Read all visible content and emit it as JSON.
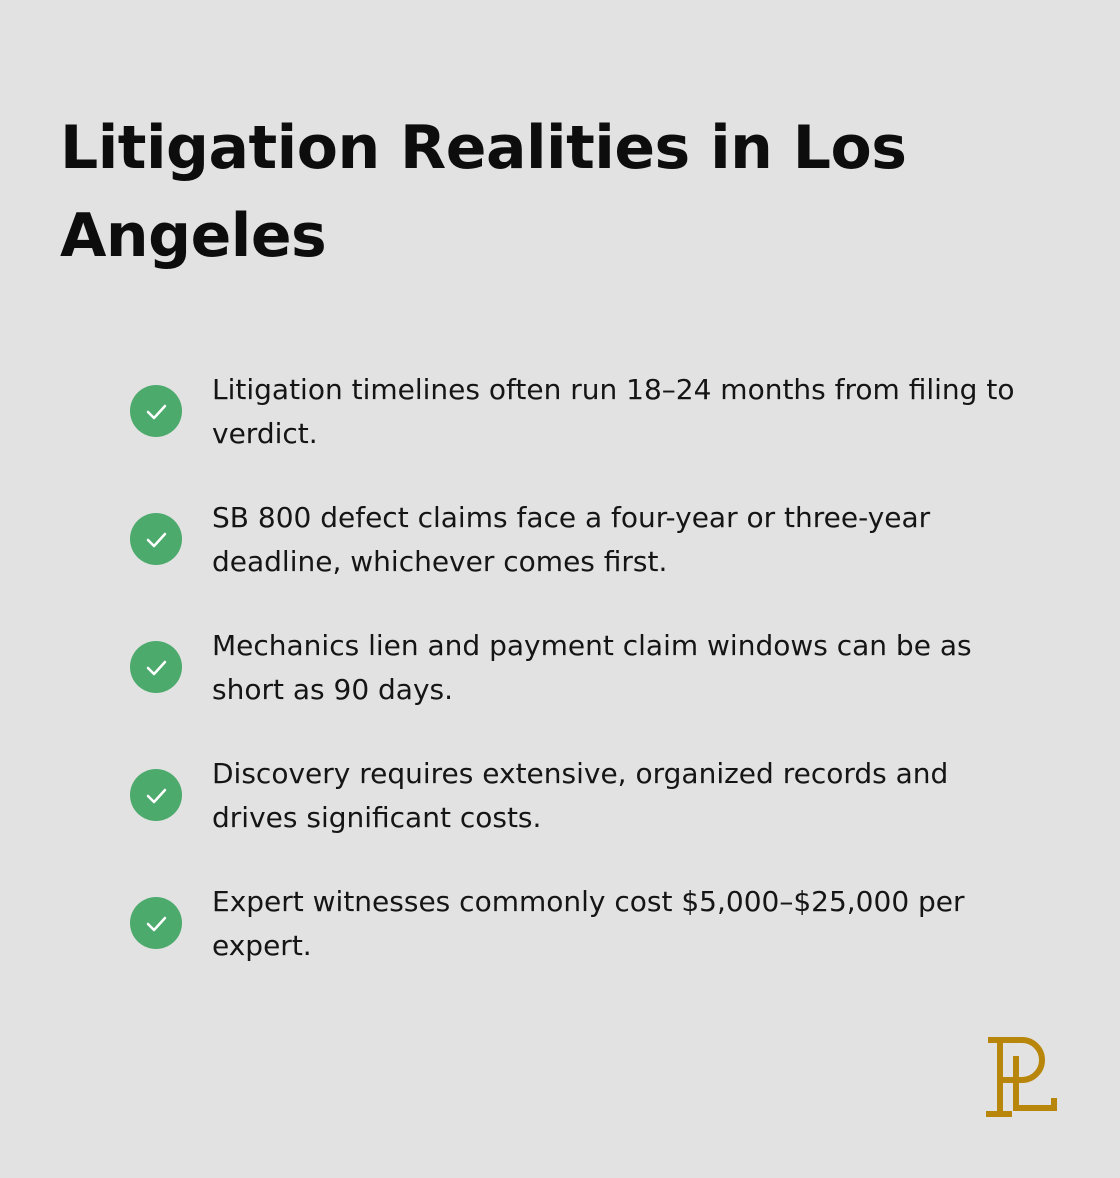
{
  "header": {
    "title": "Litigation Realities in Los Angeles"
  },
  "items": [
    "Litigation timelines often run 18–24 months from filing to verdict.",
    "SB 800 defect claims face a four-year or three-year deadline, whichever comes first.",
    "Mechanics lien and payment claim windows can be as short as 90 days.",
    "Discovery requires extensive, organized records and drives significant costs.",
    "Expert witnesses commonly cost $5,000–$25,000 per expert."
  ]
}
